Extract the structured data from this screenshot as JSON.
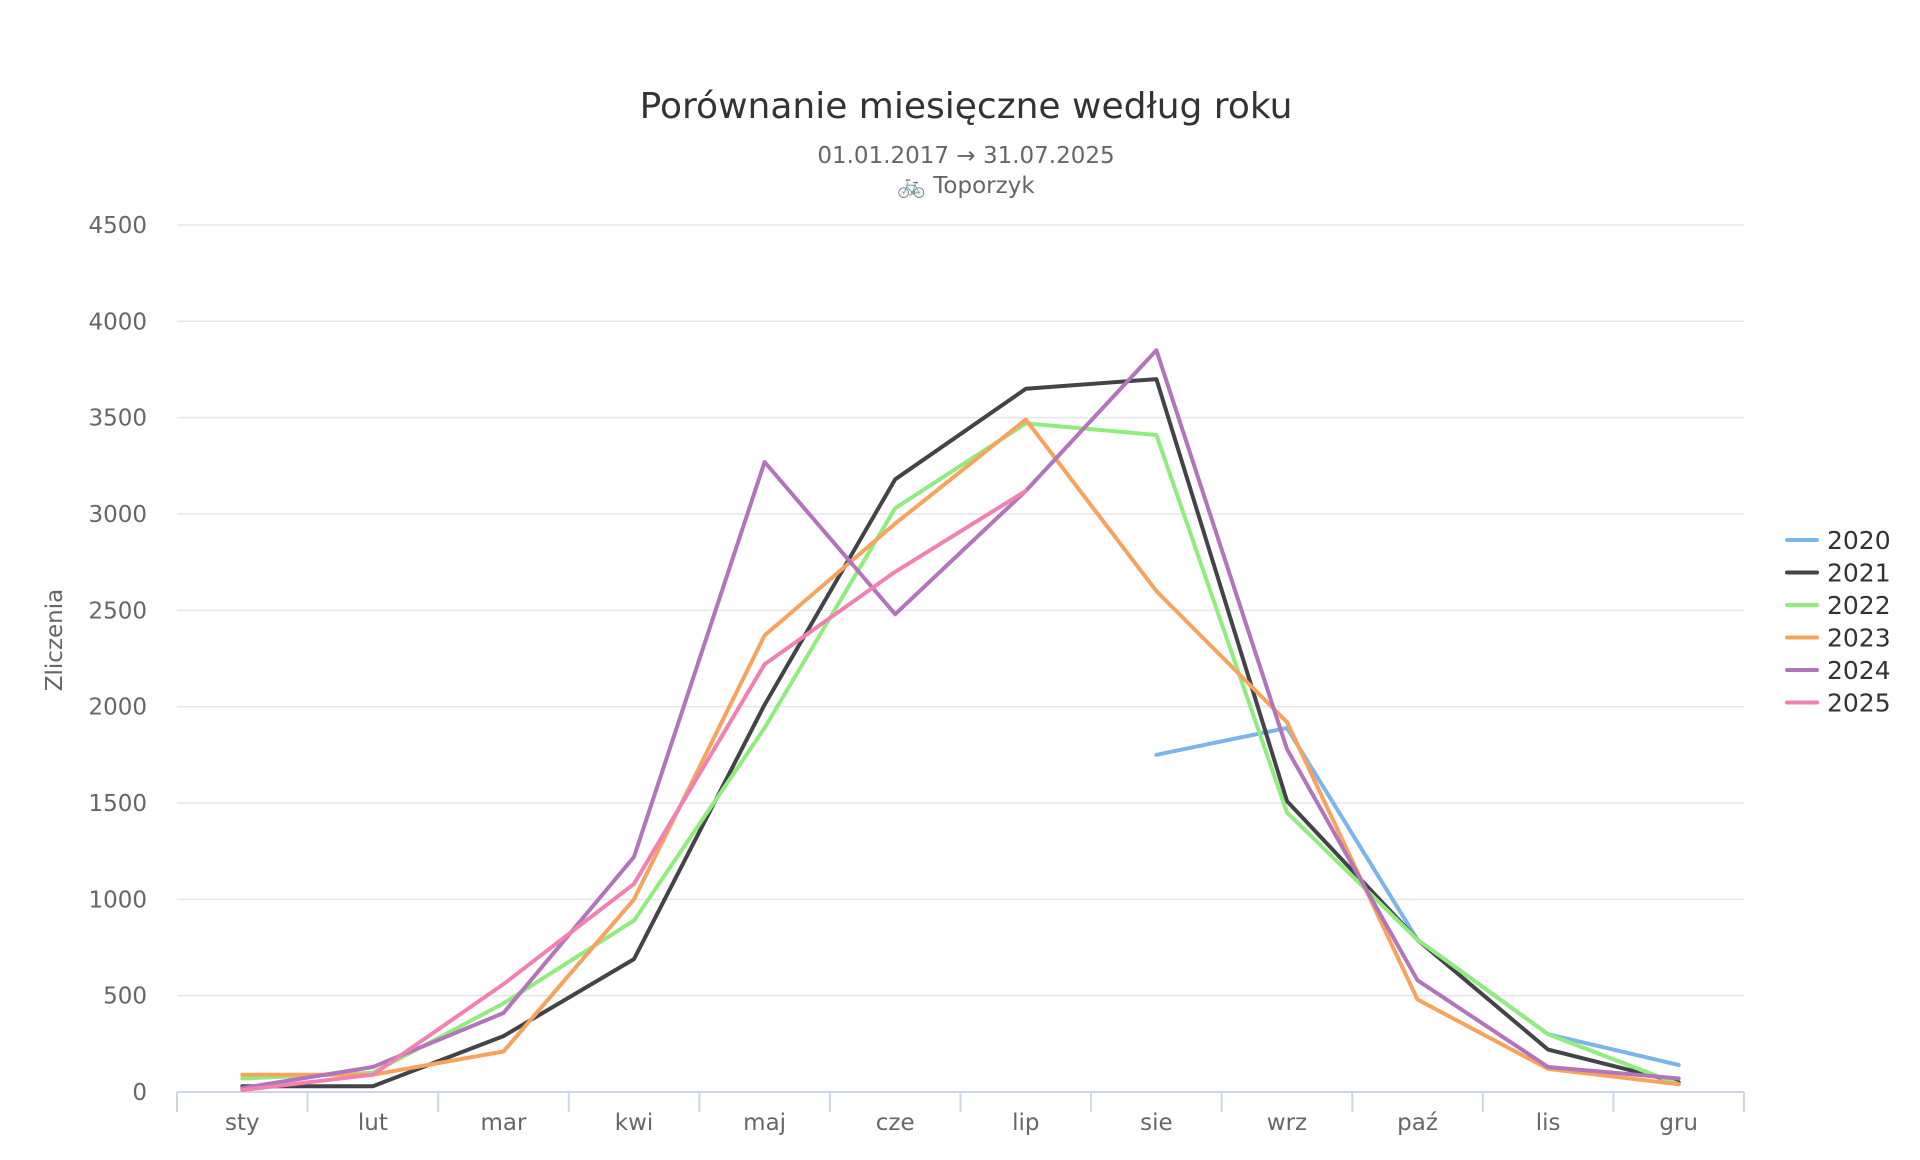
{
  "chart_data": {
    "type": "line",
    "title": "Porównanie miesięczne według roku",
    "subtitle": "01.01.2017 → 31.07.2025",
    "location": "🚲 Toporzyk",
    "xlabel": "",
    "ylabel": "Zliczenia",
    "ylim": [
      0,
      4500
    ],
    "yticks": [
      0,
      500,
      1000,
      1500,
      2000,
      2500,
      3000,
      3500,
      4000,
      4500
    ],
    "categories": [
      "sty",
      "lut",
      "mar",
      "kwi",
      "maj",
      "cze",
      "lip",
      "sie",
      "wrz",
      "paź",
      "lis",
      "gru"
    ],
    "grid": true,
    "legend_position": "right",
    "series": [
      {
        "name": "2020",
        "color": "#7cb5ec",
        "values": [
          null,
          null,
          null,
          null,
          null,
          null,
          null,
          1750,
          1890,
          790,
          300,
          140
        ]
      },
      {
        "name": "2021",
        "color": "#434348",
        "values": [
          30,
          30,
          290,
          690,
          2010,
          3180,
          3650,
          3700,
          1510,
          790,
          220,
          50
        ]
      },
      {
        "name": "2022",
        "color": "#90ed7d",
        "values": [
          70,
          100,
          460,
          890,
          1890,
          3030,
          3470,
          3410,
          1450,
          790,
          300,
          40
        ]
      },
      {
        "name": "2023",
        "color": "#f7a35c",
        "values": [
          90,
          90,
          210,
          1000,
          2370,
          2950,
          3490,
          2600,
          1920,
          480,
          120,
          40
        ]
      },
      {
        "name": "2024",
        "color": "#b274bb",
        "values": [
          20,
          130,
          410,
          1220,
          3270,
          2480,
          3120,
          3850,
          1780,
          580,
          130,
          70
        ]
      },
      {
        "name": "2025",
        "color": "#f281b2",
        "values": [
          10,
          90,
          560,
          1080,
          2220,
          2700,
          3120,
          null,
          null,
          null,
          null,
          null
        ]
      }
    ]
  }
}
